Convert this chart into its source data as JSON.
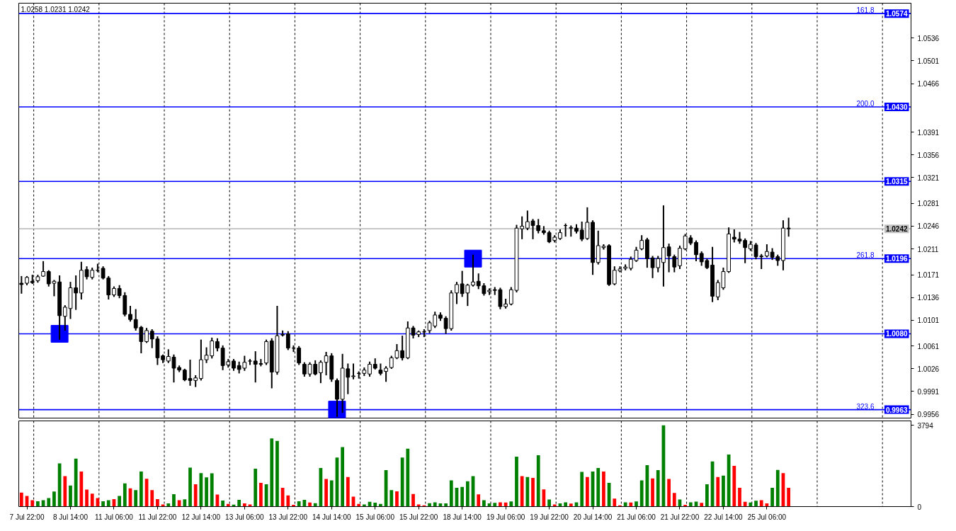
{
  "chart_data": [
    {
      "type": "candlestick",
      "color": "#000000",
      "annotations": [
        "1.0258 1.0231 1.0242",
        {
          "text": "161.8",
          "y": 1.0574
        },
        {
          "text": "200.0",
          "y": 1.043
        },
        {
          "text": "261.8",
          "y": 1.0196
        },
        {
          "text": "323.6",
          "y": 0.9963
        }
      ],
      "categories": [
        null,
        null,
        null,
        null,
        null,
        null,
        null,
        null,
        null,
        null,
        null,
        null,
        null,
        null,
        null,
        null,
        null,
        null,
        null,
        null,
        null,
        null,
        null,
        null,
        null,
        null,
        null,
        null,
        null,
        null,
        null,
        null,
        null,
        null,
        null,
        null,
        null,
        null,
        null,
        null,
        null,
        null,
        null,
        null,
        null,
        null,
        null,
        null,
        null,
        null,
        null,
        null,
        null,
        null,
        null,
        null,
        null,
        null,
        null,
        null,
        null,
        null,
        null,
        null,
        null,
        null,
        null,
        null,
        null,
        null,
        null,
        null,
        null,
        null,
        null,
        null,
        null,
        null,
        null,
        null,
        null,
        null,
        null,
        null,
        null,
        null,
        null,
        null,
        null,
        null,
        null,
        null,
        null,
        null,
        null,
        null,
        null,
        null,
        null,
        null,
        null,
        null,
        null,
        null,
        null,
        null,
        null,
        null,
        null,
        null,
        null,
        null,
        null,
        null,
        null,
        null,
        null,
        null,
        null,
        null,
        null,
        null,
        null,
        null,
        null,
        null,
        null,
        null,
        null,
        null,
        null,
        null,
        null,
        null,
        null,
        null,
        null,
        null,
        null,
        null,
        null,
        null,
        null,
        null,
        null,
        null,
        null,
        null,
        null,
        null,
        null,
        null,
        null,
        null,
        null,
        null,
        null,
        null,
        null,
        null,
        null,
        null,
        null,
        null
      ],
      "ohlc": [
        [
          1.0158,
          1.0168,
          1.0143,
          1.0156
        ],
        [
          1.0158,
          1.0168,
          1.0156,
          1.0167
        ],
        [
          1.0161,
          1.017,
          1.0158,
          1.0159
        ],
        [
          1.0162,
          1.017,
          1.016,
          1.0168
        ],
        [
          1.0169,
          1.0191,
          1.0169,
          1.0176
        ],
        [
          1.0176,
          1.0177,
          1.0154,
          1.0157
        ],
        [
          1.0158,
          1.0162,
          1.0139,
          1.0161
        ],
        [
          1.016,
          1.0169,
          1.0072,
          1.0108
        ],
        [
          1.0107,
          1.0123,
          1.0086,
          1.0121
        ],
        [
          1.0119,
          1.0159,
          1.0104,
          1.0151
        ],
        [
          1.0151,
          1.0169,
          1.0118,
          1.0143
        ],
        [
          1.0143,
          1.019,
          1.0134,
          1.0178
        ],
        [
          1.0179,
          1.0183,
          1.0165,
          1.0168
        ],
        [
          1.0167,
          1.0181,
          1.0165,
          1.0178
        ],
        [
          1.0178,
          1.0187,
          1.0176,
          1.0178
        ],
        [
          1.0181,
          1.0183,
          1.0165,
          1.0166
        ],
        [
          1.0166,
          1.0168,
          1.0134,
          1.014
        ],
        [
          1.014,
          1.0152,
          1.0138,
          1.015
        ],
        [
          1.015,
          1.0154,
          1.0136,
          1.0139
        ],
        [
          1.0139,
          1.0143,
          1.0108,
          1.011
        ],
        [
          1.011,
          1.0122,
          1.01,
          1.0102
        ],
        [
          1.0102,
          1.0117,
          1.0086,
          1.0089
        ],
        [
          1.009,
          1.0091,
          1.0051,
          1.0068
        ],
        [
          1.0068,
          1.0088,
          1.0067,
          1.0085
        ],
        [
          1.0084,
          1.0086,
          1.0059,
          1.0072
        ],
        [
          1.0072,
          1.0075,
          1.0033,
          1.0043
        ],
        [
          1.0046,
          1.0047,
          1.0036,
          1.004
        ],
        [
          1.0038,
          1.0055,
          1.0036,
          1.0045
        ],
        [
          1.0044,
          1.0047,
          1.0006,
          1.0027
        ],
        [
          1.0028,
          1.003,
          1.0022,
          1.0024
        ],
        [
          1.0024,
          1.0025,
          1.0008,
          1.0009
        ],
        [
          1.0011,
          1.0039,
          1.0001,
          1.0008
        ],
        [
          1.0008,
          1.0015,
          0.9999,
          1.0012
        ],
        [
          1.0011,
          1.007,
          1.0009,
          1.004
        ],
        [
          1.004,
          1.0058,
          1.0036,
          1.0047
        ],
        [
          1.0046,
          1.0073,
          1.0043,
          1.0069
        ],
        [
          1.0068,
          1.0072,
          1.0054,
          1.0058
        ],
        [
          1.0058,
          1.0061,
          1.0025,
          1.0031
        ],
        [
          1.0032,
          1.004,
          1.0029,
          1.0037
        ],
        [
          1.0038,
          1.004,
          1.0024,
          1.0027
        ],
        [
          1.0031,
          1.0036,
          1.002,
          1.0025
        ],
        [
          1.0027,
          1.0045,
          1.0024,
          1.0036
        ],
        [
          1.0038,
          1.004,
          1.0033,
          1.0038
        ],
        [
          1.0038,
          1.0052,
          1.0006,
          1.0033
        ],
        [
          1.0034,
          1.004,
          1.0031,
          1.0033
        ],
        [
          1.0035,
          1.007,
          1.0033,
          1.0068
        ],
        [
          1.0069,
          1.0072,
          0.9997,
          1.0021
        ],
        [
          1.0021,
          1.0122,
          1.0018,
          1.0077
        ],
        [
          1.0078,
          1.0084,
          1.0077,
          1.0079
        ],
        [
          1.008,
          1.0083,
          1.0056,
          1.0058
        ],
        [
          1.0058,
          1.0061,
          1.0053,
          1.0058
        ],
        [
          1.0058,
          1.006,
          1.0033,
          1.0035
        ],
        [
          1.0033,
          1.0035,
          1.0015,
          1.0018
        ],
        [
          1.0018,
          1.0035,
          1.0015,
          1.0033
        ],
        [
          1.0033,
          1.0038,
          1.0017,
          1.0018
        ],
        [
          1.002,
          1.0038,
          1.0005,
          1.0036
        ],
        [
          1.0036,
          1.0051,
          1.0017,
          1.0046
        ],
        [
          1.0046,
          1.0049,
          1.0007,
          1.001
        ],
        [
          1.0008,
          1.001,
          0.9953,
          0.9979
        ],
        [
          0.9979,
          1.0048,
          0.9959,
          1.0027
        ],
        [
          1.0026,
          1.0033,
          0.9988,
          1.0013
        ],
        [
          1.0014,
          1.0033,
          1.0011,
          1.0015
        ],
        [
          1.0019,
          1.0021,
          1.0012,
          1.0019
        ],
        [
          1.0019,
          1.0027,
          1.0016,
          1.0024
        ],
        [
          1.0018,
          1.0036,
          1.0015,
          1.0033
        ],
        [
          1.0033,
          1.0041,
          1.0026,
          1.0027
        ],
        [
          1.0024,
          1.0033,
          1.0017,
          1.0019
        ],
        [
          1.0022,
          1.0029,
          1.0007,
          1.0027
        ],
        [
          1.0028,
          1.0045,
          1.0027,
          1.0043
        ],
        [
          1.0043,
          1.0063,
          1.0042,
          1.0054
        ],
        [
          1.0054,
          1.0076,
          1.004,
          1.0043
        ],
        [
          1.0043,
          1.0098,
          1.0042,
          1.0089
        ],
        [
          1.0089,
          1.0091,
          1.0074,
          1.0078
        ],
        [
          1.0079,
          1.0084,
          1.0076,
          1.0083
        ],
        [
          1.0083,
          1.0086,
          1.0076,
          1.0083
        ],
        [
          1.0085,
          1.0099,
          1.0082,
          1.0097
        ],
        [
          1.0092,
          1.0113,
          1.009,
          1.0109
        ],
        [
          1.0109,
          1.0112,
          1.0101,
          1.0104
        ],
        [
          1.0104,
          1.0106,
          1.0081,
          1.0088
        ],
        [
          1.0088,
          1.0146,
          1.0086,
          1.0143
        ],
        [
          1.0143,
          1.0159,
          1.0127,
          1.0156
        ],
        [
          1.0157,
          1.0176,
          1.0138,
          1.0142
        ],
        [
          1.0143,
          1.0156,
          1.0124,
          1.0155
        ],
        [
          1.0155,
          1.0201,
          1.0154,
          1.016
        ],
        [
          1.0161,
          1.0172,
          1.015,
          1.0154
        ],
        [
          1.0154,
          1.0157,
          1.014,
          1.0142
        ],
        [
          1.0145,
          1.0149,
          1.0141,
          1.0147
        ],
        [
          1.0148,
          1.0151,
          1.0141,
          1.0147
        ],
        [
          1.0148,
          1.015,
          1.0119,
          1.0122
        ],
        [
          1.0122,
          1.0133,
          1.012,
          1.0126
        ],
        [
          1.0126,
          1.0151,
          1.0125,
          1.0148
        ],
        [
          1.0147,
          1.0247,
          1.0145,
          1.0243
        ],
        [
          1.0242,
          1.026,
          1.0227,
          1.0246
        ],
        [
          1.0243,
          1.0269,
          1.0241,
          1.0253
        ],
        [
          1.0254,
          1.0256,
          1.0227,
          1.0247
        ],
        [
          1.0247,
          1.0256,
          1.0236,
          1.0239
        ],
        [
          1.0239,
          1.0245,
          1.0234,
          1.0236
        ],
        [
          1.0236,
          1.0238,
          1.0221,
          1.0222
        ],
        [
          1.0224,
          1.0231,
          1.0222,
          1.0229
        ],
        [
          1.0227,
          1.024,
          1.0226,
          1.0236
        ],
        [
          1.0247,
          1.0249,
          1.0231,
          1.0247
        ],
        [
          1.0243,
          1.0246,
          1.0231,
          1.0244
        ],
        [
          1.0243,
          1.0248,
          1.0236,
          1.0238
        ],
        [
          1.024,
          1.0252,
          1.0224,
          1.0226
        ],
        [
          1.0227,
          1.0274,
          1.0226,
          1.0252
        ],
        [
          1.0252,
          1.0254,
          1.0172,
          1.019
        ],
        [
          1.019,
          1.0238,
          1.0188,
          1.0216
        ],
        [
          1.0213,
          1.0217,
          1.0211,
          1.0215
        ],
        [
          1.0216,
          1.0217,
          1.0155,
          1.0156
        ],
        [
          1.0157,
          1.0183,
          1.0156,
          1.0178
        ],
        [
          1.0177,
          1.0183,
          1.0176,
          1.018
        ],
        [
          1.0181,
          1.0186,
          1.0179,
          1.0183
        ],
        [
          1.0181,
          1.0198,
          1.0179,
          1.0195
        ],
        [
          1.0193,
          1.0213,
          1.0192,
          1.0209
        ],
        [
          1.0211,
          1.0231,
          1.021,
          1.0224
        ],
        [
          1.0225,
          1.0227,
          1.0183,
          1.0196
        ],
        [
          1.0197,
          1.0199,
          1.0167,
          1.0182
        ],
        [
          1.0182,
          1.0199,
          1.0176,
          1.0196
        ],
        [
          1.019,
          1.0277,
          1.0154,
          1.0213
        ],
        [
          1.0214,
          1.0218,
          1.0176,
          1.02
        ],
        [
          1.0199,
          1.0201,
          1.0176,
          1.0183
        ],
        [
          1.0185,
          1.0215,
          1.0181,
          1.0212
        ],
        [
          1.0211,
          1.0233,
          1.021,
          1.0231
        ],
        [
          1.0228,
          1.0231,
          1.0218,
          1.022
        ],
        [
          1.0221,
          1.0223,
          1.0193,
          1.0202
        ],
        [
          1.0204,
          1.0206,
          1.0186,
          1.0191
        ],
        [
          1.0193,
          1.0195,
          1.0181,
          1.0182
        ],
        [
          1.0186,
          1.0213,
          1.013,
          1.0138
        ],
        [
          1.0137,
          1.0162,
          1.0133,
          1.0159
        ],
        [
          1.0151,
          1.0181,
          1.0149,
          1.0176
        ],
        [
          1.0176,
          1.0243,
          1.0175,
          1.0234
        ],
        [
          1.0229,
          1.024,
          1.0222,
          1.0226
        ],
        [
          1.0226,
          1.0236,
          1.022,
          1.0223
        ],
        [
          1.0224,
          1.0226,
          1.019,
          1.0213
        ],
        [
          1.0211,
          1.0222,
          1.0209,
          1.0218
        ],
        [
          1.0217,
          1.0219,
          1.0196,
          1.0199
        ],
        [
          1.0199,
          1.0202,
          1.0181,
          1.02
        ],
        [
          1.02,
          1.0217,
          1.0199,
          1.0207
        ],
        [
          1.0206,
          1.0211,
          1.0195,
          1.0198
        ],
        [
          1.0199,
          1.0201,
          1.0186,
          1.0193
        ],
        [
          1.0193,
          1.0254,
          1.0179,
          1.0243
        ],
        [
          1.0243,
          1.0258,
          1.0231,
          1.0242
        ],
        null,
        null,
        null,
        null,
        null,
        null,
        null,
        null,
        null,
        null,
        null,
        null,
        null,
        null,
        null,
        null,
        null,
        null,
        null,
        null,
        null,
        null
      ],
      "ylim": [
        0.995,
        1.059
      ],
      "yticks": [
        0.9956,
        0.9991,
        1.0026,
        1.0061,
        1.0101,
        1.0136,
        1.0171,
        1.0211,
        1.0246,
        1.0281,
        1.0321,
        1.0356,
        1.0391,
        1.0466,
        1.0501,
        1.0536
      ],
      "tick_labels": "y",
      "series": [
        {
          "type": "scatter",
          "color": "#0000ff",
          "marker": "square",
          "values": [
            null,
            null,
            null,
            null,
            null,
            null,
            null,
            1.008,
            null,
            null,
            null,
            null,
            null,
            null,
            null,
            null,
            null,
            null,
            null,
            null,
            null,
            null,
            null,
            null,
            null,
            null,
            null,
            null,
            null,
            null,
            null,
            null,
            null,
            null,
            null,
            null,
            null,
            null,
            null,
            null,
            null,
            null,
            null,
            null,
            null,
            null,
            null,
            null,
            null,
            null,
            null,
            null,
            null,
            null,
            null,
            null,
            null,
            null,
            0.9963,
            null,
            null,
            null,
            null,
            null,
            null,
            null,
            null,
            null,
            null,
            null,
            null,
            null,
            null,
            null,
            null,
            null,
            null,
            null,
            null,
            null,
            null,
            null,
            null,
            1.0196,
            null,
            null,
            null,
            null,
            null,
            null,
            null,
            null,
            null,
            null,
            null,
            null,
            null,
            null,
            null,
            null,
            null,
            null,
            null,
            null,
            null,
            null,
            null,
            null,
            null,
            null,
            null,
            null,
            null,
            null,
            null,
            null,
            null,
            null,
            null,
            null,
            null,
            null,
            null,
            null,
            null,
            null,
            null,
            null,
            null,
            null,
            null,
            null,
            null,
            null,
            null,
            null,
            null,
            null,
            null,
            null,
            null,
            null,
            null,
            null,
            null,
            null,
            null,
            null,
            null,
            null,
            null,
            null,
            null,
            null,
            null,
            null,
            null,
            null,
            null,
            null,
            null,
            null,
            null,
            null
          ]
        }
      ],
      "ref_lines": [
        {
          "axis": "y",
          "value": 1.0574,
          "label": "1.0574",
          "color": "#0000ff"
        },
        {
          "axis": "y",
          "value": 1.043,
          "label": "1.0430",
          "color": "#0000ff"
        },
        {
          "axis": "y",
          "value": 1.0315,
          "label": "1.0315",
          "color": "#0000ff"
        },
        {
          "axis": "y",
          "value": 1.0196,
          "label": "1.0196",
          "color": "#0000ff"
        },
        {
          "axis": "y",
          "value": 1.008,
          "label": "1.0080",
          "color": "#0000ff"
        },
        {
          "axis": "y",
          "value": 0.9963,
          "label": "0.9963",
          "color": "#0000ff"
        },
        {
          "axis": "y",
          "value": 1.0242,
          "label": "1.0242",
          "color": "#c0c0c0"
        }
      ]
    },
    {
      "type": "bar",
      "categories": [
        null,
        "7 Jul 22:00",
        null,
        null,
        null,
        null,
        null,
        null,
        null,
        "8 Jul 14:00",
        null,
        null,
        null,
        null,
        null,
        null,
        null,
        "11 Jul 06:00",
        null,
        null,
        null,
        null,
        null,
        null,
        null,
        "11 Jul 22:00",
        null,
        null,
        null,
        null,
        null,
        null,
        null,
        "12 Jul 14:00",
        null,
        null,
        null,
        null,
        null,
        null,
        null,
        "13 Jul 06:00",
        null,
        null,
        null,
        null,
        null,
        null,
        null,
        "13 Jul 22:00",
        null,
        null,
        null,
        null,
        null,
        null,
        null,
        "14 Jul 14:00",
        null,
        null,
        null,
        null,
        null,
        null,
        null,
        "15 Jul 06:00",
        null,
        null,
        null,
        null,
        null,
        null,
        null,
        "15 Jul 22:00",
        null,
        null,
        null,
        null,
        null,
        null,
        null,
        "18 Jul 14:00",
        null,
        null,
        null,
        null,
        null,
        null,
        null,
        "19 Jul 06:00",
        null,
        null,
        null,
        null,
        null,
        null,
        null,
        "19 Jul 22:00",
        null,
        null,
        null,
        null,
        null,
        null,
        null,
        "20 Jul 14:00",
        null,
        null,
        null,
        null,
        null,
        null,
        null,
        "21 Jul 06:00",
        null,
        null,
        null,
        null,
        null,
        null,
        null,
        "21 Jul 22:00",
        null,
        null,
        null,
        null,
        null,
        null,
        null,
        "22 Jul 14:00",
        null,
        null,
        null,
        null,
        null,
        null,
        null,
        "25 Jul 06:00",
        null,
        null,
        null,
        null,
        null,
        null,
        null,
        null,
        null,
        null,
        null,
        null,
        null,
        null,
        null,
        null,
        null,
        null,
        null,
        null,
        null,
        null,
        null,
        null,
        null,
        null
      ],
      "values": [
        650,
        500,
        300,
        250,
        300,
        400,
        700,
        2020,
        1420,
        980,
        2240,
        1640,
        790,
        600,
        400,
        250,
        300,
        350,
        500,
        1080,
        850,
        770,
        1640,
        1300,
        770,
        350,
        100,
        150,
        580,
        300,
        340,
        1820,
        1040,
        1560,
        1360,
        1550,
        560,
        280,
        120,
        90,
        310,
        150,
        100,
        1770,
        1110,
        1040,
        3180,
        3070,
        880,
        520,
        80,
        250,
        310,
        190,
        160,
        1800,
        1290,
        1220,
        2290,
        2780,
        1380,
        460,
        120,
        100,
        220,
        180,
        120,
        1700,
        770,
        710,
        2290,
        2700,
        590,
        100,
        60,
        160,
        200,
        150,
        150,
        1220,
        880,
        920,
        1180,
        1420,
        570,
        300,
        150,
        170,
        200,
        190,
        240,
        2330,
        1420,
        1380,
        1340,
        2400,
        800,
        330,
        100,
        150,
        200,
        140,
        200,
        1620,
        1380,
        1640,
        1800,
        1640,
        1110,
        370,
        60,
        200,
        190,
        240,
        1220,
        1930,
        1310,
        1700,
        3794,
        1290,
        640,
        330,
        80,
        200,
        230,
        170,
        1040,
        2110,
        1380,
        1450,
        2430,
        1900,
        880,
        220,
        190,
        270,
        300,
        150,
        880,
        1710,
        1560,
        880,
        null,
        null,
        null,
        null,
        null,
        null,
        null,
        null,
        null,
        null,
        null,
        null,
        null,
        null,
        null,
        null,
        null,
        null,
        null,
        null,
        null,
        null
      ],
      "colors": [
        "#ff0000",
        "#ff0000",
        "#ff0000",
        "#008000",
        "#008000",
        "#008000",
        "#008000",
        "#008000",
        "#ff0000",
        "#008000",
        "#008000",
        "#ff0000",
        "#ff0000",
        "#ff0000",
        "#ff0000",
        "#008000",
        "#008000",
        "#ff0000",
        "#008000",
        "#008000",
        "#ff0000",
        "#008000",
        "#008000",
        "#ff0000",
        "#ff0000",
        "#ff0000",
        "#ff0000",
        "#008000",
        "#008000",
        "#ff0000",
        "#008000",
        "#008000",
        "#ff0000",
        "#008000",
        "#008000",
        "#008000",
        "#ff0000",
        "#008000",
        "#ff0000",
        "#008000",
        "#008000",
        "#ff0000",
        "#ff0000",
        "#008000",
        "#ff0000",
        "#008000",
        "#008000",
        "#008000",
        "#ff0000",
        "#ff0000",
        "#ff0000",
        "#008000",
        "#008000",
        "#ff0000",
        "#008000",
        "#008000",
        "#ff0000",
        "#008000",
        "#008000",
        "#008000",
        "#ff0000",
        "#ff0000",
        "#ff0000",
        "#008000",
        "#008000",
        "#008000",
        "#008000",
        "#008000",
        "#008000",
        "#ff0000",
        "#008000",
        "#008000",
        "#ff0000",
        "#ff0000",
        "#ff0000",
        "#008000",
        "#008000",
        "#008000",
        "#008000",
        "#008000",
        "#008000",
        "#008000",
        "#008000",
        "#008000",
        "#ff0000",
        "#008000",
        "#008000",
        "#008000",
        "#ff0000",
        "#ff0000",
        "#008000",
        "#008000",
        "#ff0000",
        "#008000",
        "#ff0000",
        "#008000",
        "#ff0000",
        "#008000",
        "#ff0000",
        "#008000",
        "#008000",
        "#ff0000",
        "#008000",
        "#008000",
        "#ff0000",
        "#008000",
        "#008000",
        "#ff0000",
        "#008000",
        "#ff0000",
        "#ff0000",
        "#008000",
        "#ff0000",
        "#008000",
        "#008000",
        "#008000",
        "#ff0000",
        "#008000",
        "#008000",
        "#ff0000",
        "#ff0000",
        "#008000",
        "#ff0000",
        "#008000",
        "#008000",
        "#ff0000",
        "#008000",
        "#008000",
        "#ff0000",
        "#008000",
        "#008000",
        "#ff0000",
        "#ff0000",
        "#ff0000",
        "#008000",
        "#008000",
        "#ff0000",
        "#ff0000",
        "#008000",
        "#008000",
        "#ff0000",
        "#ff0000",
        null,
        null,
        null,
        null,
        null,
        null,
        null,
        null,
        null,
        null,
        null,
        null,
        null,
        null,
        null,
        null,
        null,
        null,
        null,
        null,
        null,
        null
      ],
      "ylim": [
        0,
        4000
      ],
      "yticks": [
        0,
        3794
      ]
    }
  ]
}
